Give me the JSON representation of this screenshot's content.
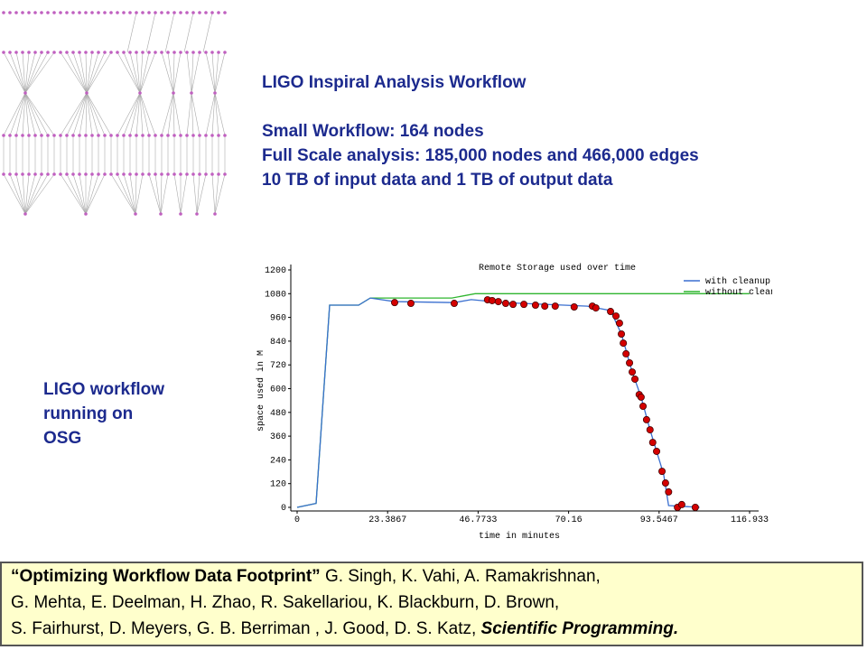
{
  "heading": {
    "title": "LIGO Inspiral Analysis Workflow",
    "lines": [
      "Small Workflow: 164 nodes",
      "Full Scale analysis: 185,000 nodes and 466,000 edges",
      "10 TB of input data and 1 TB of output data"
    ]
  },
  "side_note": "LIGO workflow running on OSG",
  "citation": {
    "title": "“Optimizing Workflow Data Footprint”",
    "line1_rest": " G. Singh, K. Vahi, A. Ramakrishnan,",
    "line2": "G. Mehta, E. Deelman, H. Zhao, R. Sakellariou, K. Blackburn, D. Brown,",
    "line3": "S. Fairhurst, D. Meyers, G. B. Berriman , J. Good, D. S. Katz, ",
    "journal": "Scientific Programming."
  },
  "chart_data": {
    "type": "line",
    "title": "Remote Storage used over time",
    "x_label": "time in minutes",
    "y_label": "space used in M",
    "xlim": [
      0,
      116.933
    ],
    "ylim": [
      0,
      1200
    ],
    "xticks": [
      0,
      23.3867,
      46.7733,
      70.16,
      93.5467,
      116.933
    ],
    "yticks": [
      0,
      120,
      240,
      360,
      480,
      600,
      720,
      840,
      960,
      1080,
      1200
    ],
    "series": [
      {
        "name": "with cleanup nodes",
        "color": "#3a6fd0",
        "x": [
          0,
          4.9,
          8.4,
          15.9,
          18.9,
          25.2,
          40.6,
          45,
          53,
          75,
          81,
          83.8,
          86.6,
          88.9,
          91.2,
          92.9,
          94.7,
          96,
          104
        ],
        "values": [
          0,
          20,
          1022,
          1022,
          1058,
          1040,
          1035,
          1050,
          1035,
          1017,
          995,
          876,
          684,
          557,
          392,
          283,
          169,
          9,
          0
        ]
      },
      {
        "name": "without cleanup nod",
        "color": "#2fb52f",
        "x": [
          0,
          4.9,
          8.4,
          15.9,
          18.9,
          40,
          46,
          116.9
        ],
        "values": [
          0,
          20,
          1022,
          1022,
          1058,
          1058,
          1080,
          1080
        ]
      }
    ],
    "points": {
      "color": "#d40000",
      "x": [
        25.2,
        29.4,
        40.6,
        49.2,
        50.4,
        52.0,
        53.9,
        55.8,
        58.6,
        61.6,
        64.0,
        66.7,
        71.6,
        76.3,
        77.2,
        81.0,
        82.4,
        83.3,
        83.8,
        84.3,
        85.0,
        85.9,
        86.6,
        87.3,
        88.4,
        88.9,
        89.4,
        90.3,
        91.2,
        91.9,
        92.9,
        94.3,
        95.2,
        96.0,
        98.3,
        99.4,
        102.9
      ],
      "values": [
        1035,
        1031,
        1031,
        1049,
        1045,
        1040,
        1031,
        1026,
        1026,
        1022,
        1017,
        1017,
        1013,
        1017,
        1008,
        990,
        967,
        931,
        876,
        830,
        776,
        730,
        684,
        648,
        570,
        557,
        511,
        443,
        392,
        328,
        283,
        182,
        123,
        78,
        0,
        14,
        0
      ]
    }
  }
}
